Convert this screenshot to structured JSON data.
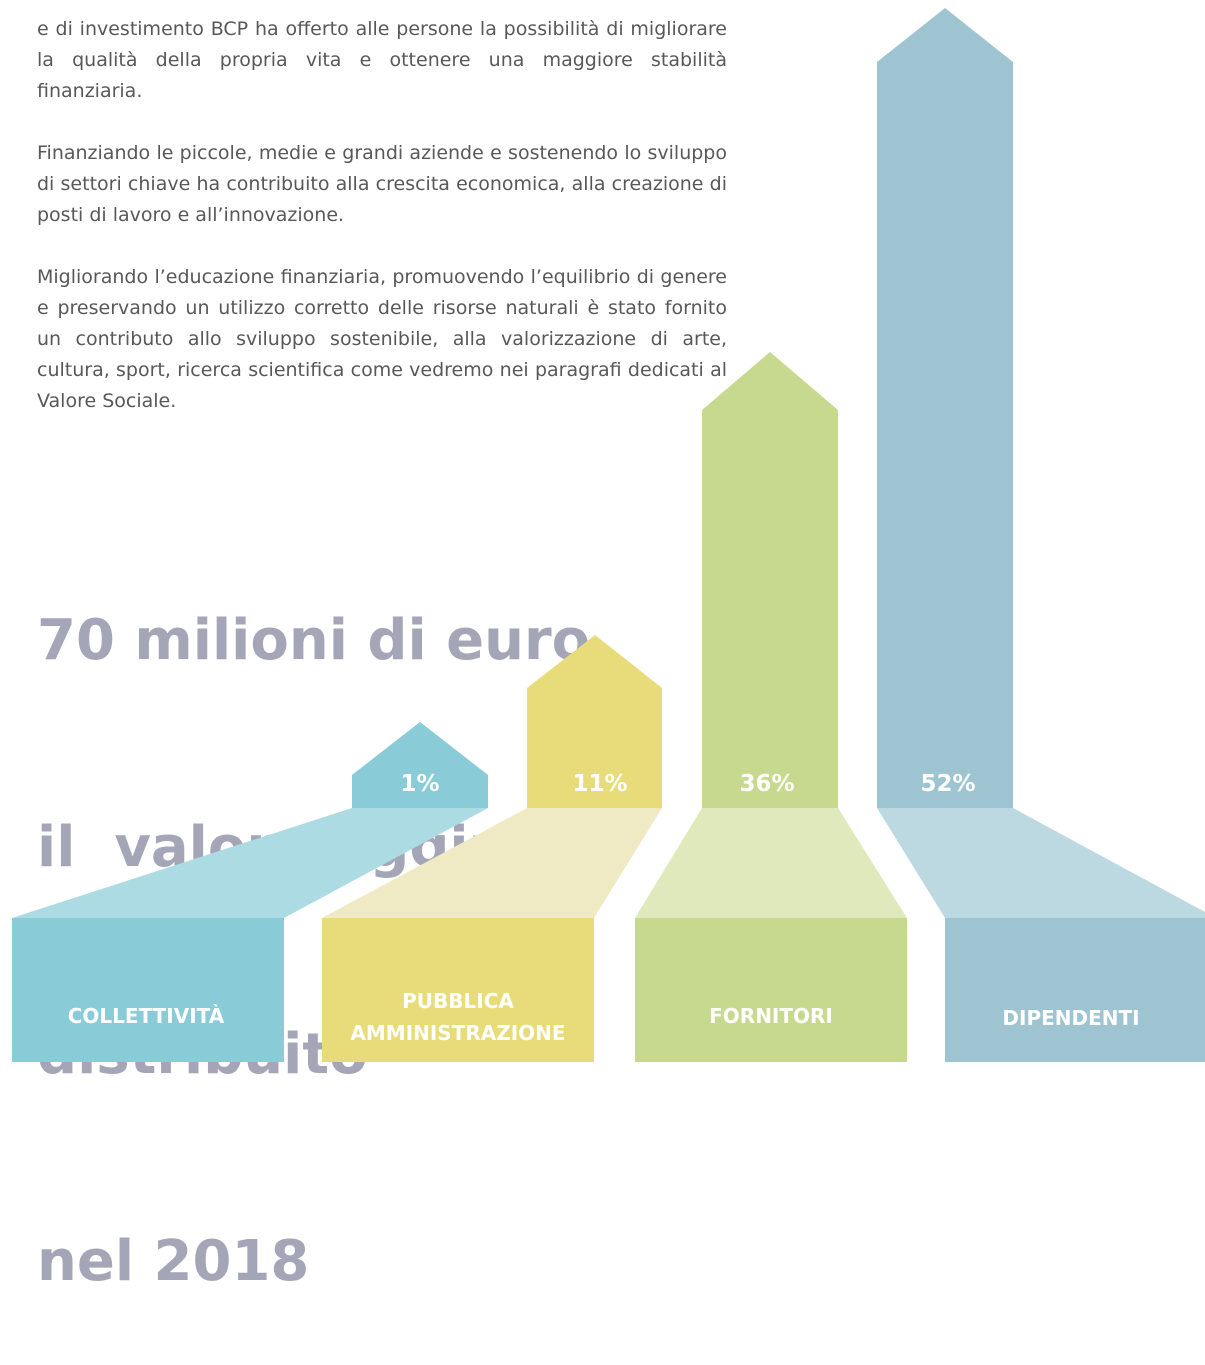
{
  "paragraphs": [
    "e di investimento BCP ha offerto alle persone la possibilità di migliorare la qualità della propria vita e ottenere una maggiore stabilità finanziaria.",
    "Finanziando le piccole, medie e grandi aziende  e sostenendo lo sviluppo di settori chiave ha contribuito alla crescita economica, alla creazione di posti di lavoro e all’innovazione.",
    "Migliorando l’educazione finanziaria, promuovendo l’equilibrio di genere e preservando un utilizzo corretto delle risorse naturali è stato fornito un contributo allo sviluppo sostenibile, alla valorizzazione di arte, cultura, sport, ricerca scientifica come vedremo nei paragrafi dedicati al Valore Sociale."
  ],
  "headline": [
    "70 milioni di euro",
    "il  valore aggiunto",
    "distribuito",
    "nel 2018"
  ],
  "items": [
    {
      "percent": "1%",
      "label": [
        "COLLETTIVITÀ"
      ]
    },
    {
      "percent": "11%",
      "label": [
        "PUBBLICA",
        "AMMINISTRAZIONE"
      ]
    },
    {
      "percent": "36%",
      "label": [
        "FORNITORI"
      ]
    },
    {
      "percent": "52%",
      "label": [
        "DIPENDENTI"
      ]
    }
  ]
}
